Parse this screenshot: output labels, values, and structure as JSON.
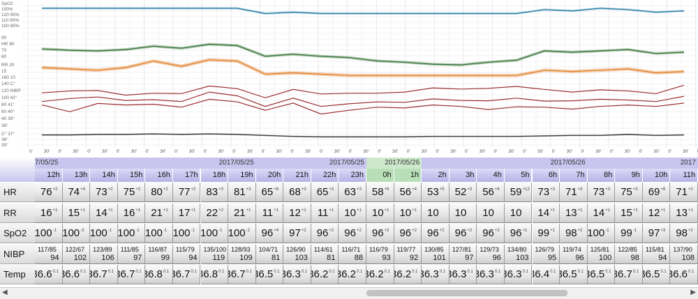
{
  "trend_axes": {
    "spo2_labels": [
      "SpO2",
      "100%",
      "120 95%",
      "110 90%",
      "100 85%"
    ],
    "hr_labels": [
      "90",
      "HR 80",
      "70",
      "60"
    ],
    "rr_labels": [
      "RR 20",
      "15",
      "160 10"
    ],
    "nibp_labels": [
      "140 C°",
      "120 NIBP",
      "100 42°",
      "80 41°",
      "60 40°",
      "40 39°",
      "38°"
    ],
    "temp_labels": [
      "C° 37°",
      "36°",
      "35°"
    ],
    "minute_ticks": [
      "0'",
      "30'"
    ]
  },
  "dates": [
    {
      "label": "7/05/25"
    },
    {
      "label": "2017/05/25"
    },
    {
      "label": "2017/05/25"
    },
    {
      "label": "2017/05/26"
    },
    {
      "label": "2017/05/26"
    },
    {
      "label": "2017"
    }
  ],
  "hours": [
    "12h",
    "13h",
    "14h",
    "15h",
    "16h",
    "17h",
    "18h",
    "19h",
    "20h",
    "21h",
    "22h",
    "23h",
    "0h",
    "1h",
    "2h",
    "3h",
    "4h",
    "5h",
    "6h",
    "7h",
    "8h",
    "9h",
    "10h",
    "11h"
  ],
  "rows": {
    "hr": {
      "label": "HR",
      "values": [
        "76",
        "74",
        "73",
        "75",
        "80",
        "77",
        "83",
        "81",
        "65",
        "68",
        "65",
        "63",
        "58",
        "56",
        "53",
        "52",
        "56",
        "59",
        "73",
        "71",
        "73",
        "75",
        "69",
        "71"
      ]
    },
    "rr": {
      "label": "RR",
      "values": [
        "16",
        "15",
        "14",
        "16",
        "21",
        "17",
        "22",
        "21",
        "11",
        "12",
        "11",
        "10",
        "10",
        "10",
        "10",
        "10",
        "10",
        "10",
        "14",
        "13",
        "14",
        "15",
        "12",
        "13"
      ]
    },
    "spo2": {
      "label": "SpO2",
      "values": [
        "100",
        "100",
        "100",
        "100",
        "100",
        "100",
        "100",
        "100",
        "96",
        "97",
        "96",
        "96",
        "96",
        "96",
        "96",
        "96",
        "96",
        "96",
        "99",
        "98",
        "100",
        "99",
        "97",
        "98"
      ]
    },
    "nibp": {
      "label": "NIBP",
      "sys_dia": [
        "117/85",
        "122/67",
        "123/89",
        "111/85",
        "116/87",
        "115/79",
        "135/100",
        "128/93",
        "104/71",
        "126/90",
        "114/61",
        "116/71",
        "116/79",
        "119/77",
        "130/85",
        "127/81",
        "129/73",
        "134/80",
        "126/79",
        "119/74",
        "125/81",
        "122/85",
        "115/81",
        "137/90"
      ],
      "map": [
        "94",
        "102",
        "106",
        "97",
        "99",
        "94",
        "119",
        "109",
        "81",
        "103",
        "81",
        "88",
        "93",
        "92",
        "101",
        "97",
        "96",
        "103",
        "95",
        "96",
        "100",
        "98",
        "94",
        "108"
      ]
    },
    "temp": {
      "label": "Temp",
      "values": [
        "36.6",
        "36.6",
        "36.7",
        "36.7",
        "36.8",
        "36.7",
        "36.8",
        "36.7",
        "36.5",
        "36.3",
        "36.2",
        "36.2",
        "36.2",
        "36.2",
        "36.3",
        "36.3",
        "36.3",
        "36.3",
        "36.4",
        "36.5",
        "36.5",
        "36.7",
        "36.5",
        "36.6"
      ]
    }
  },
  "deltas": {
    "hr": [
      "+2",
      "+4",
      "+2",
      "+2",
      "+2",
      "+2",
      "+3",
      "+3",
      "+6",
      "+3",
      "+3",
      "+3",
      "+6",
      "+4",
      "+5",
      "+3",
      "+6",
      "+12",
      "+3",
      "+3",
      "+3",
      "+3",
      "+8",
      "+2"
    ],
    "rr": [
      "+1",
      "+1",
      "+1",
      "+1",
      "+1",
      "+1",
      "+2",
      "+1",
      "+1",
      "+1",
      "+1",
      "+1",
      "+1",
      "+1",
      "",
      "",
      "",
      "",
      "+1",
      "+1",
      "+1",
      "+1",
      "+1",
      "+1"
    ],
    "spo2": [
      "-1",
      "-3",
      "-1",
      "-1",
      "-1",
      "-1",
      "-1",
      "-2",
      "+4",
      "+2",
      "+2",
      "+2",
      "+2",
      "+2",
      "+2",
      "+2",
      "+2",
      "+1",
      "+1",
      "+2",
      "-1",
      "-1",
      "+3",
      "+2"
    ],
    "temp": [
      "0.1",
      "0.1",
      "0.1",
      "0.1",
      "0.1",
      "0.1",
      "0.1",
      "0.1",
      "0.1",
      "0.1",
      "0.1",
      "0.1",
      "0.1",
      "0.1",
      "0.1",
      "0.1",
      "0.1",
      "0.1",
      "0.1",
      "0.1",
      "0.1",
      "0.1",
      "0.1",
      "0.1"
    ]
  },
  "colors": {
    "spo2": "#2a7fa6",
    "hr": "#2e6f2e",
    "rr": "#e07a20",
    "nibp": "#9b2d2d",
    "temp": "#333333",
    "band_purple": "#c8c6ee",
    "band_green": "#cde9cd"
  },
  "scroll": {
    "left_arrow": "◀",
    "right_arrow": "▶"
  }
}
